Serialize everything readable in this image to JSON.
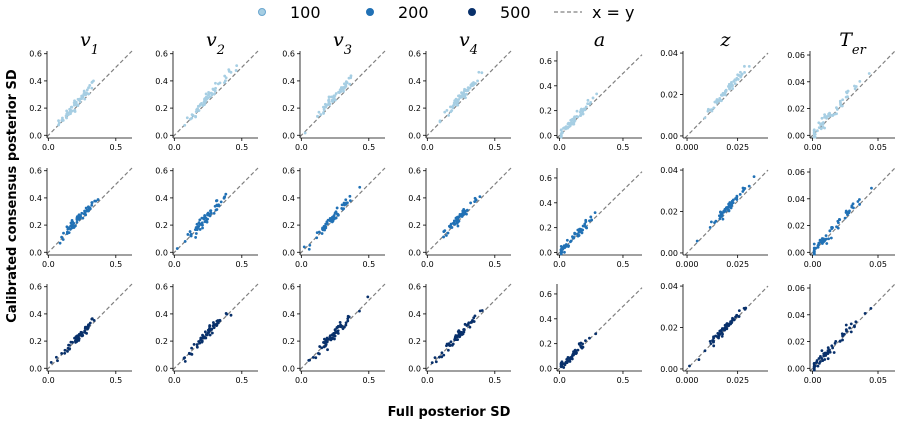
{
  "chart_data": {
    "type": "scatter",
    "xlabel": "Full posterior SD",
    "ylabel": "Calibrated consensus posterior SD",
    "legend": {
      "placement": "top-center",
      "entries": [
        {
          "label": "100",
          "color": "#a6cee3",
          "kind": "point"
        },
        {
          "label": "200",
          "color": "#2171b5",
          "kind": "point"
        },
        {
          "label": "500",
          "color": "#08306b",
          "kind": "point"
        },
        {
          "label": "x = y",
          "color": "#808080",
          "kind": "dashed-line"
        }
      ]
    },
    "grid": false,
    "rows": [
      "100",
      "200",
      "500"
    ],
    "columns": [
      {
        "title_base": "v",
        "title_sub": "1",
        "xlim": [
          -0.01,
          0.62
        ],
        "ylim": [
          -0.02,
          0.62
        ],
        "xticks": [
          0.0,
          0.5
        ],
        "xtick_labels": [
          "0.0",
          "0.5"
        ],
        "yticks": [
          0.0,
          0.2,
          0.4,
          0.6
        ],
        "ytick_labels": [
          "0.0",
          "0.2",
          "0.4",
          "0.6"
        ],
        "x_center": 0.22,
        "x_spread": 0.07,
        "y_center": 0.26,
        "y_spread": 0.1
      },
      {
        "title_base": "v",
        "title_sub": "2",
        "xlim": [
          -0.01,
          0.62
        ],
        "ylim": [
          -0.02,
          0.62
        ],
        "xticks": [
          0.0,
          0.5
        ],
        "xtick_labels": [
          "0.0",
          "0.5"
        ],
        "yticks": [
          0.0,
          0.2,
          0.4,
          0.6
        ],
        "ytick_labels": [
          "0.0",
          "0.2",
          "0.4",
          "0.6"
        ],
        "x_center": 0.24,
        "x_spread": 0.08,
        "y_center": 0.27,
        "y_spread": 0.1
      },
      {
        "title_base": "v",
        "title_sub": "3",
        "xlim": [
          -0.01,
          0.62
        ],
        "ylim": [
          -0.02,
          0.62
        ],
        "xticks": [
          0.0,
          0.5
        ],
        "xtick_labels": [
          "0.0",
          "0.5"
        ],
        "yticks": [
          0.0,
          0.2,
          0.4,
          0.6
        ],
        "ytick_labels": [
          "0.0",
          "0.2",
          "0.4",
          "0.6"
        ],
        "x_center": 0.24,
        "x_spread": 0.08,
        "y_center": 0.25,
        "y_spread": 0.09
      },
      {
        "title_base": "v",
        "title_sub": "4",
        "xlim": [
          -0.01,
          0.62
        ],
        "ylim": [
          -0.02,
          0.62
        ],
        "xticks": [
          0.0,
          0.5
        ],
        "xtick_labels": [
          "0.0",
          "0.5"
        ],
        "yticks": [
          0.0,
          0.2,
          0.4,
          0.6
        ],
        "ytick_labels": [
          "0.0",
          "0.2",
          "0.4",
          "0.6"
        ],
        "x_center": 0.24,
        "x_spread": 0.07,
        "y_center": 0.27,
        "y_spread": 0.1
      },
      {
        "title_base": "a",
        "title_sub": "",
        "xlim": [
          -0.02,
          0.65
        ],
        "ylim": [
          -0.02,
          0.68
        ],
        "xticks": [
          0.0,
          0.5
        ],
        "xtick_labels": [
          "0.0",
          "0.5"
        ],
        "yticks": [
          0.0,
          0.2,
          0.4,
          0.6
        ],
        "ytick_labels": [
          "0.0",
          "0.2",
          "0.4",
          "0.6"
        ],
        "x_center": 0.08,
        "x_spread": 0.09,
        "y_center": 0.09,
        "y_spread": 0.1
      },
      {
        "title_base": "z",
        "title_sub": "",
        "xlim": [
          -0.002,
          0.04
        ],
        "ylim": [
          -0.001,
          0.041
        ],
        "xticks": [
          0.0,
          0.025
        ],
        "xtick_labels": [
          "0.000",
          "0.025"
        ],
        "yticks": [
          0.0,
          0.02,
          0.04
        ],
        "ytick_labels": [
          "0.00",
          "0.02",
          "0.04"
        ],
        "x_center": 0.02,
        "x_spread": 0.005,
        "y_center": 0.021,
        "y_spread": 0.005
      },
      {
        "title_base": "T",
        "title_sub": "er",
        "xlim": [
          -0.002,
          0.063
        ],
        "ylim": [
          -0.002,
          0.063
        ],
        "xticks": [
          0.0,
          0.05
        ],
        "xtick_labels": [
          "0.00",
          "0.05"
        ],
        "yticks": [
          0.0,
          0.02,
          0.04,
          0.06
        ],
        "ytick_labels": [
          "0.00",
          "0.02",
          "0.04",
          "0.06"
        ],
        "x_center": 0.012,
        "x_spread": 0.012,
        "y_center": 0.013,
        "y_spread": 0.012
      }
    ]
  }
}
